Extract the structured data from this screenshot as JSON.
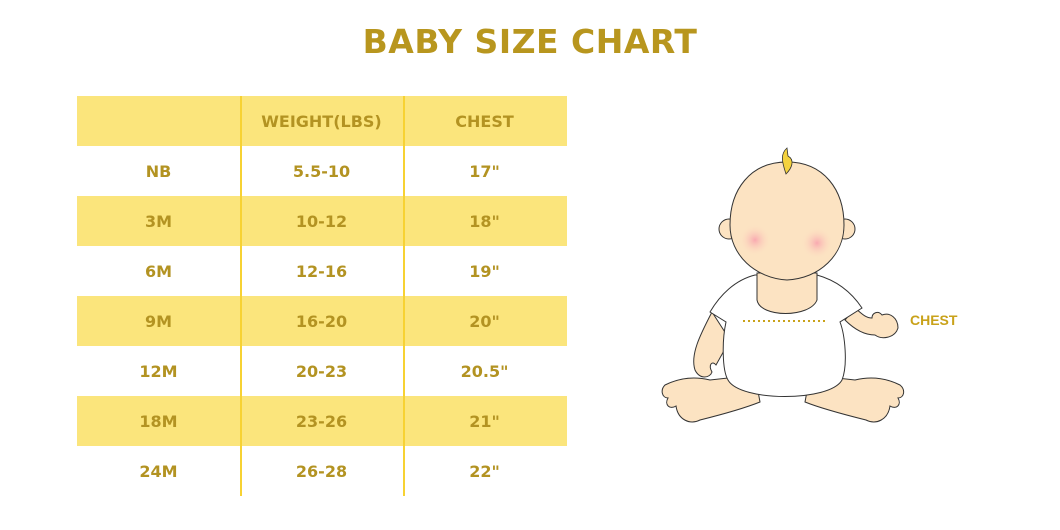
{
  "title": "BABY SIZE CHART",
  "table": {
    "headers": [
      "",
      "WEIGHT(LBS)",
      "CHEST"
    ],
    "rows": [
      [
        "NB",
        "5.5-10",
        "17\""
      ],
      [
        "3M",
        "10-12",
        "18\""
      ],
      [
        "6M",
        "12-16",
        "19\""
      ],
      [
        "9M",
        "16-20",
        "20\""
      ],
      [
        "12M",
        "20-23",
        "20.5\""
      ],
      [
        "18M",
        "23-26",
        "21\""
      ],
      [
        "24M",
        "26-28",
        "22\""
      ]
    ]
  },
  "illustration": {
    "label": "CHEST",
    "icon": "baby-illustration"
  },
  "colors": {
    "accent": "#B8961E",
    "band": "#FBE57C",
    "divider": "#F7D233"
  }
}
